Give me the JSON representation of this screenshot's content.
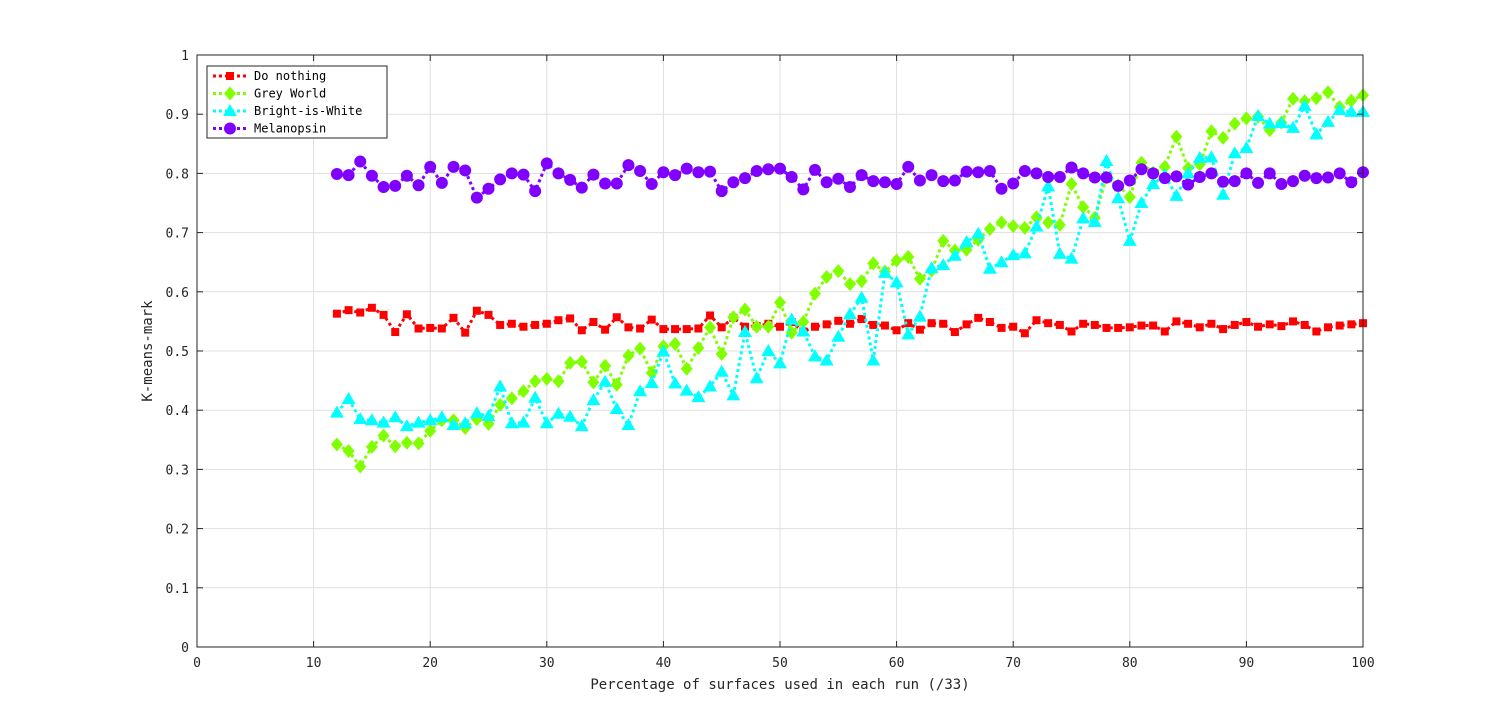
{
  "chart_data": {
    "type": "line",
    "xlabel": "Percentage of surfaces used in each run (/33)",
    "ylabel": "K-means-mark",
    "xlim": [
      0,
      100
    ],
    "ylim": [
      0,
      1
    ],
    "xticks": [
      0,
      10,
      20,
      30,
      40,
      50,
      60,
      70,
      80,
      90,
      100
    ],
    "yticks": [
      0,
      0.1,
      0.2,
      0.3,
      0.4,
      0.5,
      0.6,
      0.7,
      0.8,
      0.9,
      1
    ],
    "xtick_labels": [
      "0",
      "10",
      "20",
      "30",
      "40",
      "50",
      "60",
      "70",
      "80",
      "90",
      "100"
    ],
    "ytick_labels": [
      "0",
      "0.1",
      "0.2",
      "0.3",
      "0.4",
      "0.5",
      "0.6",
      "0.7",
      "0.8",
      "0.9",
      "1"
    ],
    "grid": true,
    "legend_position": "top-left",
    "x": [
      12,
      13,
      14,
      15,
      16,
      17,
      18,
      19,
      20,
      21,
      22,
      23,
      24,
      25,
      26,
      27,
      28,
      29,
      30,
      31,
      32,
      33,
      34,
      35,
      36,
      37,
      38,
      39,
      40,
      41,
      42,
      43,
      44,
      45,
      46,
      47,
      48,
      49,
      50,
      51,
      52,
      53,
      54,
      55,
      56,
      57,
      58,
      59,
      60,
      61,
      62,
      63,
      64,
      65,
      66,
      67,
      68,
      69,
      70,
      71,
      72,
      73,
      74,
      75,
      76,
      77,
      78,
      79,
      80,
      81,
      82,
      83,
      84,
      85,
      86,
      87,
      88,
      89,
      90,
      91,
      92,
      93,
      94,
      95,
      96,
      97,
      98,
      99,
      100
    ],
    "series": [
      {
        "name": "Do nothing",
        "color": "#ff0000",
        "marker": "square",
        "values": [
          0.563,
          0.569,
          0.565,
          0.573,
          0.561,
          0.532,
          0.562,
          0.538,
          0.539,
          0.538,
          0.556,
          0.531,
          0.568,
          0.561,
          0.544,
          0.546,
          0.541,
          0.544,
          0.546,
          0.552,
          0.555,
          0.535,
          0.549,
          0.536,
          0.557,
          0.54,
          0.538,
          0.553,
          0.537,
          0.537,
          0.537,
          0.538,
          0.56,
          0.54,
          0.556,
          0.541,
          0.542,
          0.546,
          0.541,
          0.549,
          0.533,
          0.541,
          0.545,
          0.551,
          0.546,
          0.554,
          0.544,
          0.543,
          0.535,
          0.547,
          0.536,
          0.547,
          0.546,
          0.532,
          0.545,
          0.556,
          0.549,
          0.539,
          0.541,
          0.53,
          0.552,
          0.547,
          0.544,
          0.533,
          0.546,
          0.544,
          0.539,
          0.539,
          0.54,
          0.543,
          0.543,
          0.533,
          0.55,
          0.546,
          0.54,
          0.546,
          0.537,
          0.544,
          0.549,
          0.541,
          0.545,
          0.542,
          0.55,
          0.544,
          0.533,
          0.54,
          0.543,
          0.545,
          0.547
        ]
      },
      {
        "name": "Grey World",
        "color": "#80ff00",
        "marker": "diamond",
        "values": [
          0.342,
          0.331,
          0.305,
          0.338,
          0.357,
          0.339,
          0.345,
          0.344,
          0.365,
          0.383,
          0.383,
          0.37,
          0.385,
          0.377,
          0.409,
          0.42,
          0.432,
          0.449,
          0.453,
          0.449,
          0.48,
          0.482,
          0.447,
          0.475,
          0.443,
          0.492,
          0.504,
          0.463,
          0.508,
          0.512,
          0.47,
          0.505,
          0.54,
          0.495,
          0.557,
          0.57,
          0.541,
          0.541,
          0.582,
          0.531,
          0.549,
          0.597,
          0.625,
          0.635,
          0.613,
          0.618,
          0.648,
          0.634,
          0.653,
          0.659,
          0.622,
          0.636,
          0.686,
          0.67,
          0.671,
          0.688,
          0.706,
          0.717,
          0.711,
          0.708,
          0.726,
          0.717,
          0.713,
          0.782,
          0.743,
          0.725,
          0.793,
          0.78,
          0.76,
          0.818,
          0.801,
          0.811,
          0.862,
          0.809,
          0.815,
          0.871,
          0.86,
          0.884,
          0.893,
          0.896,
          0.873,
          0.886,
          0.926,
          0.922,
          0.927,
          0.937,
          0.912,
          0.923,
          0.932
        ]
      },
      {
        "name": "Bright-is-White",
        "color": "#00ffff",
        "marker": "triangle",
        "values": [
          0.396,
          0.419,
          0.385,
          0.383,
          0.379,
          0.388,
          0.373,
          0.379,
          0.383,
          0.388,
          0.375,
          0.378,
          0.395,
          0.39,
          0.44,
          0.378,
          0.379,
          0.421,
          0.378,
          0.394,
          0.389,
          0.373,
          0.417,
          0.448,
          0.402,
          0.375,
          0.432,
          0.446,
          0.499,
          0.445,
          0.433,
          0.422,
          0.44,
          0.465,
          0.425,
          0.532,
          0.454,
          0.5,
          0.479,
          0.553,
          0.533,
          0.491,
          0.484,
          0.524,
          0.562,
          0.59,
          0.484,
          0.632,
          0.616,
          0.528,
          0.558,
          0.64,
          0.645,
          0.661,
          0.684,
          0.698,
          0.639,
          0.65,
          0.662,
          0.665,
          0.71,
          0.778,
          0.664,
          0.656,
          0.724,
          0.718,
          0.821,
          0.758,
          0.686,
          0.75,
          0.782,
          0.797,
          0.762,
          0.8,
          0.826,
          0.827,
          0.764,
          0.834,
          0.843,
          0.897,
          0.884,
          0.885,
          0.877,
          0.914,
          0.866,
          0.887,
          0.907,
          0.904,
          0.904
        ]
      },
      {
        "name": "Melanopsin",
        "color": "#8000ff",
        "marker": "circle",
        "values": [
          0.799,
          0.797,
          0.82,
          0.796,
          0.777,
          0.779,
          0.796,
          0.78,
          0.811,
          0.784,
          0.811,
          0.805,
          0.759,
          0.774,
          0.79,
          0.8,
          0.798,
          0.77,
          0.817,
          0.8,
          0.789,
          0.776,
          0.798,
          0.783,
          0.783,
          0.814,
          0.804,
          0.782,
          0.802,
          0.797,
          0.808,
          0.802,
          0.803,
          0.77,
          0.785,
          0.792,
          0.804,
          0.807,
          0.808,
          0.794,
          0.773,
          0.806,
          0.785,
          0.791,
          0.777,
          0.797,
          0.787,
          0.785,
          0.782,
          0.811,
          0.788,
          0.797,
          0.787,
          0.788,
          0.803,
          0.802,
          0.804,
          0.774,
          0.783,
          0.804,
          0.8,
          0.794,
          0.794,
          0.81,
          0.8,
          0.793,
          0.793,
          0.779,
          0.788,
          0.807,
          0.8,
          0.792,
          0.795,
          0.781,
          0.794,
          0.8,
          0.786,
          0.787,
          0.8,
          0.784,
          0.8,
          0.782,
          0.787,
          0.796,
          0.792,
          0.793,
          0.8,
          0.785,
          0.802
        ]
      }
    ]
  }
}
